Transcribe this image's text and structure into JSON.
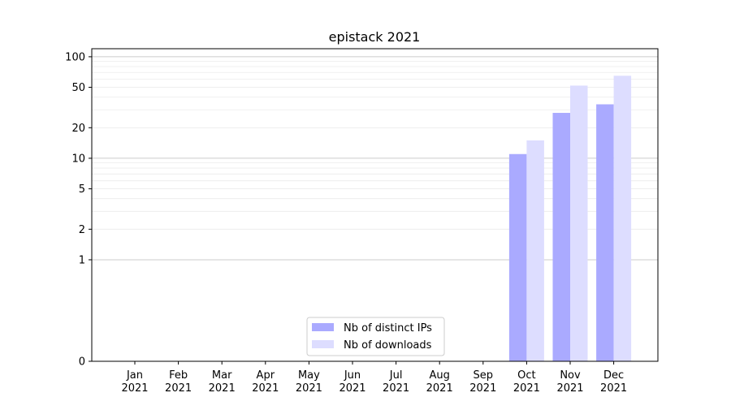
{
  "chart_data": {
    "type": "bar",
    "title": "epistack 2021",
    "xlabel": "",
    "ylabel": "",
    "yscale": "symlog",
    "ylim": [
      0,
      120
    ],
    "categories": [
      [
        "Jan",
        "2021"
      ],
      [
        "Feb",
        "2021"
      ],
      [
        "Mar",
        "2021"
      ],
      [
        "Apr",
        "2021"
      ],
      [
        "May",
        "2021"
      ],
      [
        "Jun",
        "2021"
      ],
      [
        "Jul",
        "2021"
      ],
      [
        "Aug",
        "2021"
      ],
      [
        "Sep",
        "2021"
      ],
      [
        "Oct",
        "2021"
      ],
      [
        "Nov",
        "2021"
      ],
      [
        "Dec",
        "2021"
      ]
    ],
    "y_ticks": [
      {
        "value": 0,
        "label": "0"
      },
      {
        "value": 1,
        "label": "1"
      },
      {
        "value": 2,
        "label": "2"
      },
      {
        "value": 5,
        "label": "5"
      },
      {
        "value": 10,
        "label": "10"
      },
      {
        "value": 20,
        "label": "20"
      },
      {
        "value": 50,
        "label": "50"
      },
      {
        "value": 100,
        "label": "100"
      }
    ],
    "series": [
      {
        "name": "Nb of distinct IPs",
        "color": "#aaaaff",
        "values": [
          0,
          0,
          0,
          0,
          0,
          0,
          0,
          0,
          0,
          11,
          28,
          34
        ]
      },
      {
        "name": "Nb of downloads",
        "color": "#ddddff",
        "values": [
          0,
          0,
          0,
          0,
          0,
          0,
          0,
          0,
          0,
          15,
          52,
          65
        ]
      }
    ],
    "grid": true,
    "legend_position": "lower-center"
  }
}
